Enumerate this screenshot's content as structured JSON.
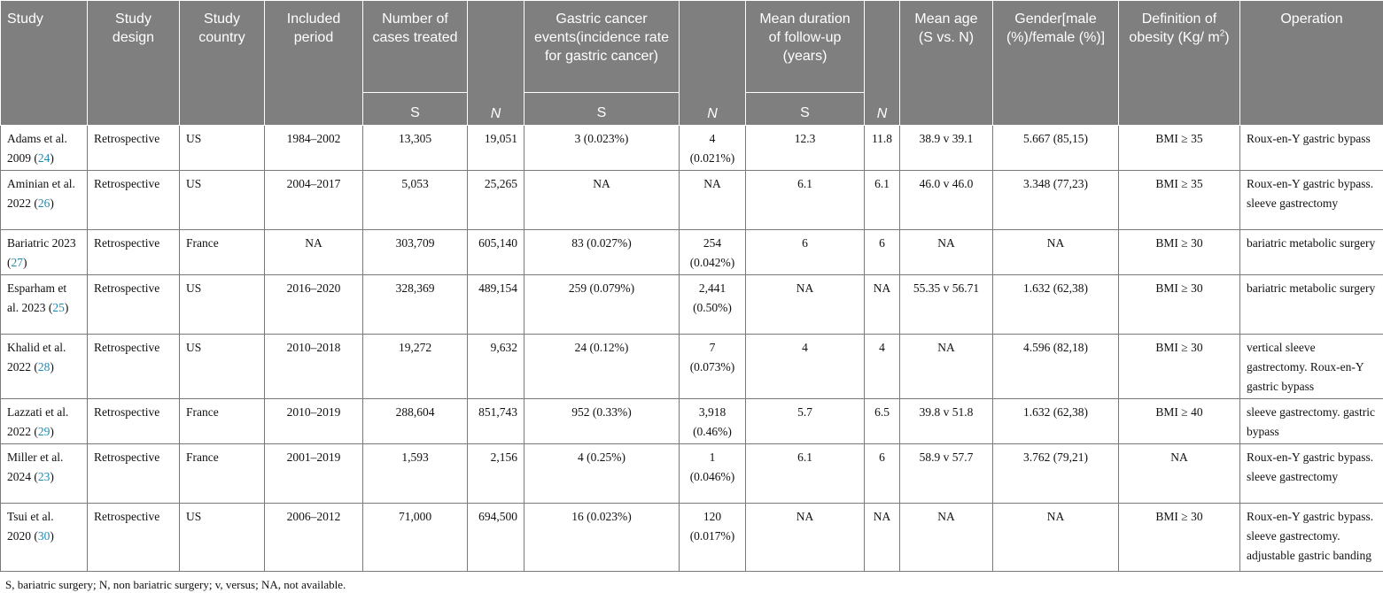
{
  "header": {
    "study": "Study",
    "study_design": "Study design",
    "study_country": "Study country",
    "included_period": "Included period",
    "cases_treated": "Number of cases treated",
    "gc_events": "Gastric cancer events(incidence rate for gastric cancer)",
    "followup": "Mean duration of follow-up (years)",
    "mean_age": "Mean age (S vs. N)",
    "gender": "Gender[male (%)/female (%)]",
    "obesity_def_prefix": "Definition of obesity (Kg/ m",
    "obesity_def_sup": "2",
    "obesity_def_suffix": ")",
    "operation": "Operation",
    "sub_s": "S",
    "sub_n": "N"
  },
  "rows": [
    {
      "study": "Adams et al. 2009 (",
      "cite": "24",
      "design": "Retrospective",
      "country": "US",
      "period": "1984–2002",
      "cases_s": "13,305",
      "cases_n": "19,051",
      "events_s": "3 (0.023%)",
      "events_n": "4 (0.021%)",
      "fu_s": "12.3",
      "fu_n": "11.8",
      "age": "38.9 v 39.1",
      "gender": "5.667 (85,15)",
      "obesity": "BMI ≥ 35",
      "operation": "Roux-en-Y gastric bypass"
    },
    {
      "study": "Aminian et al. 2022 (",
      "cite": "26",
      "design": "Retrospective",
      "country": "US",
      "period": "2004–2017",
      "cases_s": "5,053",
      "cases_n": "25,265",
      "events_s": "NA",
      "events_n": "NA",
      "fu_s": "6.1",
      "fu_n": "6.1",
      "age": "46.0 v 46.0",
      "gender": "3.348 (77,23)",
      "obesity": "BMI ≥ 35",
      "operation": "Roux-en-Y gastric bypass. sleeve gastrectomy"
    },
    {
      "study": "Bariatric 2023 (",
      "cite": "27",
      "design": "Retrospective",
      "country": "France",
      "period": "NA",
      "cases_s": "303,709",
      "cases_n": "605,140",
      "events_s": "83 (0.027%)",
      "events_n": "254 (0.042%)",
      "fu_s": "6",
      "fu_n": "6",
      "age": "NA",
      "gender": "NA",
      "obesity": "BMI ≥ 30",
      "operation": "bariatric metabolic surgery"
    },
    {
      "study": "Esparham et al. 2023 (",
      "cite": "25",
      "design": "Retrospective",
      "country": "US",
      "period": "2016–2020",
      "cases_s": "328,369",
      "cases_n": "489,154",
      "events_s": "259 (0.079%)",
      "events_n": "2,441 (0.50%)",
      "fu_s": "NA",
      "fu_n": "NA",
      "age": "55.35 v 56.71",
      "gender": "1.632 (62,38)",
      "obesity": "BMI ≥ 30",
      "operation": "bariatric metabolic surgery"
    },
    {
      "study": "Khalid et al. 2022 (",
      "cite": "28",
      "design": "Retrospective",
      "country": "US",
      "period": "2010–2018",
      "cases_s": "19,272",
      "cases_n": "9,632",
      "events_s": "24 (0.12%)",
      "events_n": "7 (0.073%)",
      "fu_s": "4",
      "fu_n": "4",
      "age": "NA",
      "gender": "4.596 (82,18)",
      "obesity": "BMI ≥ 30",
      "operation": "vertical sleeve gastrectomy. Roux-en-Y gastric bypass"
    },
    {
      "study": "Lazzati et al. 2022 (",
      "cite": "29",
      "design": "Retrospective",
      "country": "France",
      "period": "2010–2019",
      "cases_s": "288,604",
      "cases_n": "851,743",
      "events_s": "952 (0.33%)",
      "events_n": "3,918 (0.46%)",
      "fu_s": "5.7",
      "fu_n": "6.5",
      "age": "39.8 v 51.8",
      "gender": "1.632 (62,38)",
      "obesity": "BMI ≥ 40",
      "operation": "sleeve gastrectomy. gastric bypass"
    },
    {
      "study": "Miller et al. 2024 (",
      "cite": "23",
      "design": "Retrospective",
      "country": "France",
      "period": "2001–2019",
      "cases_s": "1,593",
      "cases_n": "2,156",
      "events_s": "4 (0.25%)",
      "events_n": "1 (0.046%)",
      "fu_s": "6.1",
      "fu_n": "6",
      "age": "58.9 v 57.7",
      "gender": "3.762 (79,21)",
      "obesity": "NA",
      "operation": "Roux-en-Y gastric bypass. sleeve gastrectomy"
    },
    {
      "study": "Tsui et al. 2020 (",
      "cite": "30",
      "design": "Retrospective",
      "country": "US",
      "period": "2006–2012",
      "cases_s": "71,000",
      "cases_n": "694,500",
      "events_s": "16 (0.023%)",
      "events_n": "120 (0.017%)",
      "fu_s": "NA",
      "fu_n": "NA",
      "age": "NA",
      "gender": "NA",
      "obesity": "BMI ≥ 30",
      "operation": "Roux-en-Y gastric bypass. sleeve gastrectomy. adjustable gastric banding"
    }
  ],
  "footnote": "S, bariatric surgery; N, non bariatric surgery; v, versus; NA, not available."
}
